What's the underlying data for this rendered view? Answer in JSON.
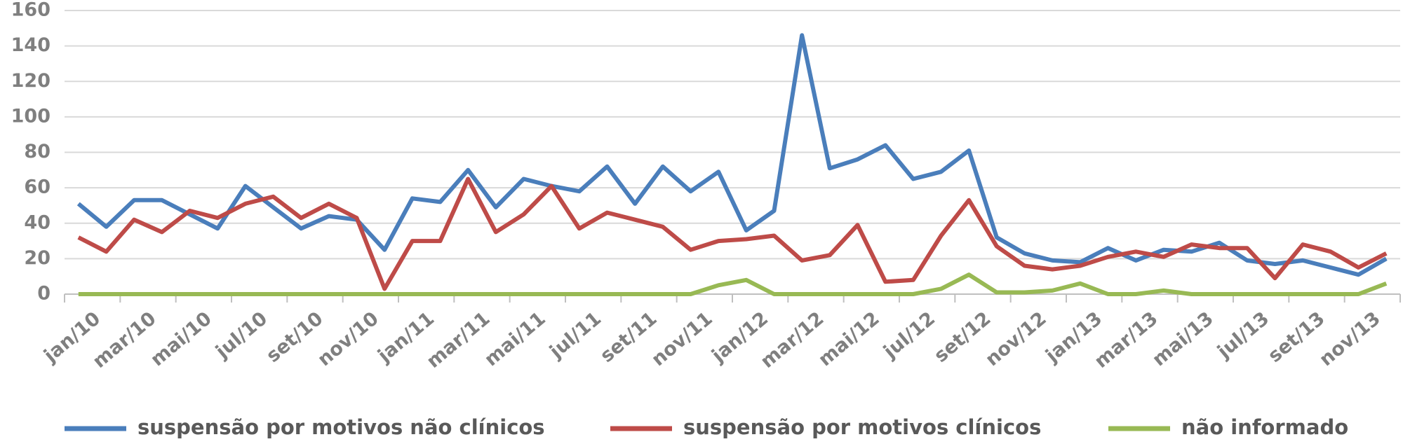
{
  "chart_data": {
    "type": "line",
    "categories": [
      "jan/10",
      null,
      "mar/10",
      null,
      "mai/10",
      null,
      "jul/10",
      null,
      "set/10",
      null,
      "nov/10",
      null,
      "jan/11",
      null,
      "mar/11",
      null,
      "mai/11",
      null,
      "jul/11",
      null,
      "set/11",
      null,
      "nov/11",
      null,
      "jan/12",
      null,
      "mar/12",
      null,
      "mai/12",
      null,
      "jul/12",
      null,
      "set/12",
      null,
      "nov/12",
      null,
      "jan/13",
      null,
      "mar/13",
      null,
      "mai/13",
      null,
      "jul/13",
      null,
      "set/13",
      null,
      "nov/13",
      null
    ],
    "series": [
      {
        "name": "suspensão por motivos não clínicos",
        "color": "#4a7ebb",
        "values": [
          51,
          38,
          53,
          53,
          45,
          37,
          61,
          49,
          37,
          44,
          42,
          25,
          54,
          52,
          70,
          49,
          65,
          61,
          58,
          72,
          51,
          72,
          58,
          69,
          36,
          47,
          146,
          71,
          76,
          84,
          65,
          69,
          81,
          32,
          23,
          19,
          18,
          26,
          19,
          25,
          24,
          29,
          19,
          17,
          19,
          15,
          11,
          20
        ]
      },
      {
        "name": "suspensão por motivos clínicos",
        "color": "#be4b48",
        "values": [
          32,
          24,
          42,
          35,
          47,
          43,
          51,
          55,
          43,
          51,
          43,
          3,
          30,
          30,
          65,
          35,
          45,
          61,
          37,
          46,
          42,
          38,
          25,
          30,
          31,
          33,
          19,
          22,
          39,
          7,
          8,
          33,
          53,
          27,
          16,
          14,
          16,
          21,
          24,
          21,
          28,
          26,
          26,
          9,
          28,
          24,
          15,
          23
        ]
      },
      {
        "name": "não informado",
        "color": "#98b954",
        "values": [
          0,
          0,
          0,
          0,
          0,
          0,
          0,
          0,
          0,
          0,
          0,
          0,
          0,
          0,
          0,
          0,
          0,
          0,
          0,
          0,
          0,
          0,
          0,
          5,
          8,
          0,
          0,
          0,
          0,
          0,
          0,
          3,
          11,
          1,
          1,
          2,
          6,
          0,
          0,
          2,
          0,
          0,
          0,
          0,
          0,
          0,
          0,
          6
        ]
      }
    ],
    "ylim": [
      0,
      160
    ],
    "yticks": [
      0,
      20,
      40,
      60,
      80,
      100,
      120,
      140,
      160
    ],
    "grid": true,
    "legend": "bottom"
  }
}
